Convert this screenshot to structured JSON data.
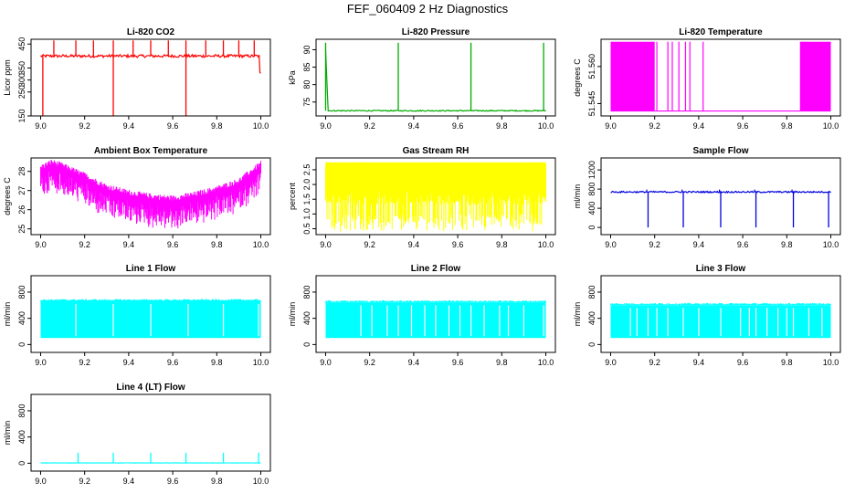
{
  "title": "FEF_060409  2 Hz Diagnostics",
  "chart_data": [
    {
      "type": "line",
      "title": "Li-820 CO2",
      "ylabel": "Licor ppm",
      "color": "#ff0000",
      "xlim": [
        9.0,
        10.0
      ],
      "ylim": [
        150,
        470
      ],
      "xticks": [
        9.0,
        9.2,
        9.4,
        9.6,
        9.8,
        10.0
      ],
      "xtick_labels": [
        "9.0",
        "9.2",
        "9.4",
        "9.6",
        "9.8",
        "10.0"
      ],
      "yticks": [
        150,
        250,
        300,
        350,
        450
      ],
      "ytick_labels": [
        "150",
        "250",
        "300",
        "350",
        "450"
      ],
      "series": [
        {
          "name": "CO2",
          "baseline": 400,
          "noise": 6,
          "spikes_up": [
            9.06,
            9.16,
            9.24,
            9.33,
            9.42,
            9.5,
            9.58,
            9.66,
            9.75,
            9.83,
            9.9,
            9.97
          ],
          "spike_up_top": 465,
          "spikes_down": [
            9.01,
            9.33,
            9.66
          ],
          "spike_down_bottom": 150,
          "end_value": 330
        }
      ]
    },
    {
      "type": "line",
      "title": "Li-820 Pressure",
      "ylabel": "kPa",
      "color": "#00aa00",
      "xlim": [
        9.0,
        10.0
      ],
      "ylim": [
        71,
        93
      ],
      "xticks": [
        9.0,
        9.2,
        9.4,
        9.6,
        9.8,
        10.0
      ],
      "xtick_labels": [
        "9.0",
        "9.2",
        "9.4",
        "9.6",
        "9.8",
        "10.0"
      ],
      "yticks": [
        75,
        80,
        85,
        90
      ],
      "ytick_labels": [
        "75",
        "80",
        "85",
        "90"
      ],
      "series": [
        {
          "name": "Pressure",
          "baseline": 72.5,
          "noise": 0.15,
          "spikes_up": [
            9.0,
            9.33,
            9.66,
            9.99
          ],
          "spike_up_top": 92,
          "start_value": 90
        }
      ]
    },
    {
      "type": "line",
      "title": "Li-820 Temperature",
      "ylabel": "degrees C",
      "color": "#ff00ff",
      "xlim": [
        9.0,
        10.0
      ],
      "ylim": [
        51.54,
        51.571
      ],
      "xticks": [
        9.0,
        9.2,
        9.4,
        9.6,
        9.8,
        10.0
      ],
      "xtick_labels": [
        "9.0",
        "9.2",
        "9.4",
        "9.6",
        "9.8",
        "10.0"
      ],
      "yticks": [
        51.545,
        51.56
      ],
      "ytick_labels": [
        "51.545",
        "51.560"
      ],
      "series": [
        {
          "name": "Temperature",
          "low": 51.542,
          "high": 51.57,
          "filled_ranges": [
            [
              9.0,
              9.2
            ],
            [
              9.86,
              10.0
            ]
          ],
          "switch_lines": [
            9.21,
            9.26,
            9.28,
            9.31,
            9.34,
            9.36,
            9.42,
            9.87,
            9.88
          ]
        }
      ]
    },
    {
      "type": "line",
      "title": "Ambient Box Temperature",
      "ylabel": "degrees C",
      "color": "#ff00ff",
      "xlim": [
        9.0,
        10.0
      ],
      "ylim": [
        24.7,
        28.7
      ],
      "xticks": [
        9.0,
        9.2,
        9.4,
        9.6,
        9.8,
        10.0
      ],
      "xtick_labels": [
        "9.0",
        "9.2",
        "9.4",
        "9.6",
        "9.8",
        "10.0"
      ],
      "yticks": [
        25,
        26,
        27,
        28
      ],
      "ytick_labels": [
        "25",
        "26",
        "27",
        "28"
      ],
      "series": [
        {
          "name": "Ambient",
          "upper_curve": [
            [
              9.0,
              28.2
            ],
            [
              9.05,
              28.5
            ],
            [
              9.1,
              28.3
            ],
            [
              9.2,
              27.8
            ],
            [
              9.3,
              27.2
            ],
            [
              9.4,
              26.9
            ],
            [
              9.5,
              26.7
            ],
            [
              9.6,
              26.6
            ],
            [
              9.7,
              26.8
            ],
            [
              9.8,
              27.1
            ],
            [
              9.9,
              27.5
            ],
            [
              10.0,
              28.4
            ]
          ],
          "band": 1.2
        }
      ]
    },
    {
      "type": "line",
      "title": "Gas Stream RH",
      "ylabel": "percent",
      "color": "#ffff00",
      "xlim": [
        9.0,
        10.0
      ],
      "ylim": [
        0.3,
        2.9
      ],
      "xticks": [
        9.0,
        9.2,
        9.4,
        9.6,
        9.8,
        10.0
      ],
      "xtick_labels": [
        "9.0",
        "9.2",
        "9.4",
        "9.6",
        "9.8",
        "10.0"
      ],
      "yticks": [
        0.5,
        1.0,
        1.5,
        2.0,
        2.5
      ],
      "ytick_labels": [
        "0.5",
        "1.0",
        "1.5",
        "2.0",
        "2.5"
      ],
      "series": [
        {
          "name": "RH",
          "low": 0.4,
          "high": 2.75,
          "dense_low": 1.8
        }
      ]
    },
    {
      "type": "line",
      "title": "Sample Flow",
      "ylabel": "ml/min",
      "color": "#0000dd",
      "xlim": [
        9.0,
        10.0
      ],
      "ylim": [
        -150,
        1450
      ],
      "xticks": [
        9.0,
        9.2,
        9.4,
        9.6,
        9.8,
        10.0
      ],
      "xtick_labels": [
        "9.0",
        "9.2",
        "9.4",
        "9.6",
        "9.8",
        "10.0"
      ],
      "yticks": [
        0,
        400,
        800,
        1200
      ],
      "ytick_labels": [
        "0",
        "400",
        "800",
        "1200"
      ],
      "series": [
        {
          "name": "Sample",
          "baseline": 740,
          "noise": 15,
          "spikes_down": [
            9.17,
            9.33,
            9.5,
            9.66,
            9.83,
            9.99
          ],
          "spike_down_bottom": 0,
          "spikes_up_before": [
            9.17,
            9.33,
            9.5,
            9.66,
            9.83
          ],
          "spike_up_top": 790
        }
      ]
    },
    {
      "type": "line",
      "title": "Line 1 Flow",
      "ylabel": "ml/min",
      "color": "#00ffff",
      "xlim": [
        9.0,
        10.0
      ],
      "ylim": [
        -120,
        1050
      ],
      "xticks": [
        9.0,
        9.2,
        9.4,
        9.6,
        9.8,
        10.0
      ],
      "xtick_labels": [
        "9.0",
        "9.2",
        "9.4",
        "9.6",
        "9.8",
        "10.0"
      ],
      "yticks": [
        0,
        400,
        800
      ],
      "ytick_labels": [
        "0",
        "400",
        "800"
      ],
      "series": [
        {
          "name": "Line 1",
          "low": 100,
          "high": 660,
          "gaps": [
            9.16,
            9.33,
            9.5,
            9.67,
            9.83,
            9.99
          ]
        }
      ]
    },
    {
      "type": "line",
      "title": "Line 2 Flow",
      "ylabel": "ml/min",
      "color": "#00ffff",
      "xlim": [
        9.0,
        10.0
      ],
      "ylim": [
        -120,
        1050
      ],
      "xticks": [
        9.0,
        9.2,
        9.4,
        9.6,
        9.8,
        10.0
      ],
      "xtick_labels": [
        "9.0",
        "9.2",
        "9.4",
        "9.6",
        "9.8",
        "10.0"
      ],
      "yticks": [
        0,
        400,
        800
      ],
      "ytick_labels": [
        "0",
        "400",
        "800"
      ],
      "series": [
        {
          "name": "Line 2",
          "low": 100,
          "high": 640,
          "gaps": [
            9.16,
            9.21,
            9.28,
            9.33,
            9.39,
            9.45,
            9.5,
            9.56,
            9.61,
            9.66,
            9.72,
            9.79,
            9.83,
            9.9,
            9.99
          ]
        }
      ]
    },
    {
      "type": "line",
      "title": "Line 3 Flow",
      "ylabel": "ml/min",
      "color": "#00ffff",
      "xlim": [
        9.0,
        10.0
      ],
      "ylim": [
        -120,
        1050
      ],
      "xticks": [
        9.0,
        9.2,
        9.4,
        9.6,
        9.8,
        10.0
      ],
      "xtick_labels": [
        "9.0",
        "9.2",
        "9.4",
        "9.6",
        "9.8",
        "10.0"
      ],
      "yticks": [
        0,
        400,
        800
      ],
      "ytick_labels": [
        "0",
        "400",
        "800"
      ],
      "series": [
        {
          "name": "Line 3",
          "low": 100,
          "high": 600,
          "gaps": [
            9.09,
            9.12,
            9.17,
            9.21,
            9.26,
            9.33,
            9.4,
            9.5,
            9.59,
            9.63,
            9.66,
            9.71,
            9.76,
            9.8,
            9.83,
            9.9,
            9.96
          ]
        }
      ]
    },
    {
      "type": "line",
      "title": "Line 4 (LT) Flow",
      "ylabel": "ml/min",
      "color": "#00ffff",
      "xlim": [
        9.0,
        10.0
      ],
      "ylim": [
        -120,
        1050
      ],
      "xticks": [
        9.0,
        9.2,
        9.4,
        9.6,
        9.8,
        10.0
      ],
      "xtick_labels": [
        "9.0",
        "9.2",
        "9.4",
        "9.6",
        "9.8",
        "10.0"
      ],
      "yticks": [
        0,
        400,
        800
      ],
      "ytick_labels": [
        "0",
        "400",
        "800"
      ],
      "series": [
        {
          "name": "Line 4",
          "baseline": 5,
          "noise": 2,
          "spikes_up": [
            9.17,
            9.33,
            9.5,
            9.66,
            9.83,
            9.99
          ],
          "spike_up_top": 160
        }
      ]
    }
  ]
}
